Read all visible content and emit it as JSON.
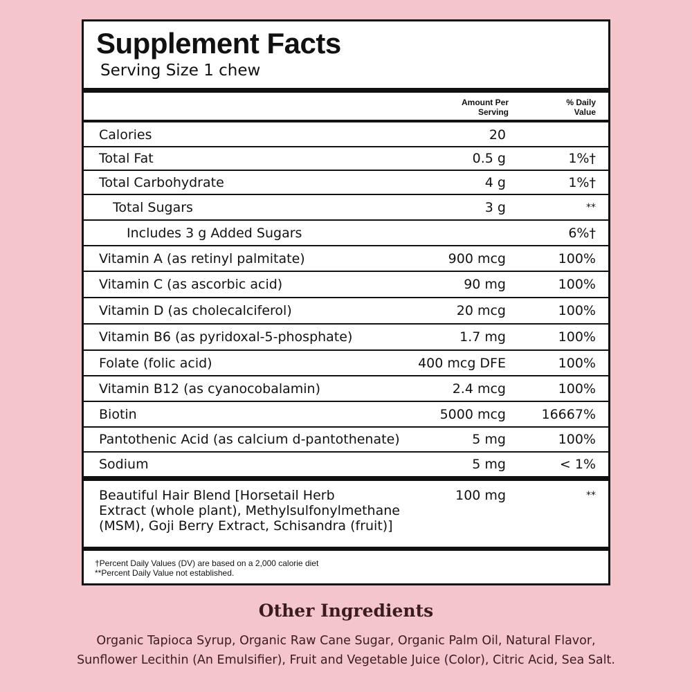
{
  "panel": {
    "title": "Supplement Facts",
    "serving_size": "Serving Size 1 chew",
    "header": {
      "amount": [
        "Amount Per",
        "Serving"
      ],
      "daily_value": [
        "% Daily",
        "Value"
      ]
    },
    "rows": [
      {
        "name": "Calories",
        "amount": "20",
        "dv": "",
        "indent": 0
      },
      {
        "name": "Total Fat",
        "amount": "0.5 g",
        "dv": "1%†",
        "indent": 0
      },
      {
        "name": "Total Carbohydrate",
        "amount": "4 g",
        "dv": "1%†",
        "indent": 0
      },
      {
        "name": "Total Sugars",
        "amount": "3 g",
        "dv": "**",
        "indent": 1
      },
      {
        "name": "Includes 3 g Added Sugars",
        "amount": "",
        "dv": "6%†",
        "indent": 2
      },
      {
        "name": "Vitamin A (as retinyl palmitate)",
        "amount": "900 mcg",
        "dv": "100%",
        "indent": 0
      },
      {
        "name": "Vitamin C (as ascorbic acid)",
        "amount": "90  mg",
        "dv": "100%",
        "indent": 0
      },
      {
        "name": "Vitamin D (as cholecalciferol)",
        "amount": "20 mcg",
        "dv": "100%",
        "indent": 0
      },
      {
        "name": "Vitamin B6 (as pyridoxal-5-phosphate)",
        "amount": "1.7 mg",
        "dv": "100%",
        "indent": 0
      },
      {
        "name": "Folate (folic acid)",
        "amount": "400 mcg DFE",
        "dv": "100%",
        "indent": 0
      },
      {
        "name": "Vitamin B12 (as cyanocobalamin)",
        "amount": "2.4 mcg",
        "dv": "100%",
        "indent": 0
      },
      {
        "name": "Biotin",
        "amount": "5000 mcg",
        "dv": "16667%",
        "indent": 0
      },
      {
        "name": "Pantothenic Acid (as calcium d-pantothenate)",
        "amount": "5 mg",
        "dv": "100%",
        "indent": 0
      },
      {
        "name": "Sodium",
        "amount": "5 mg",
        "dv": "< 1%",
        "indent": 0
      }
    ],
    "blend": {
      "lines": [
        "Beautiful Hair Blend [Horsetail Herb",
        "Extract (whole plant), Methylsulfonylmethane",
        "(MSM), Goji Berry Extract, Schisandra (fruit)]"
      ],
      "amount": "100 mg",
      "dv": "**"
    },
    "footnotes": [
      "†Percent Daily Values (DV) are based on a 2,000 calorie diet",
      "**Percent Daily Value not established."
    ]
  },
  "other_ingredients": {
    "title": "Other Ingredients",
    "lines": [
      "Organic Tapioca Syrup, Organic Raw Cane Sugar, Organic Palm Oil, Natural Flavor,",
      "Sunflower Lecithin (An Emulsifier), Fruit and Vegetable Juice (Color), Citric Acid, Sea Salt."
    ]
  }
}
